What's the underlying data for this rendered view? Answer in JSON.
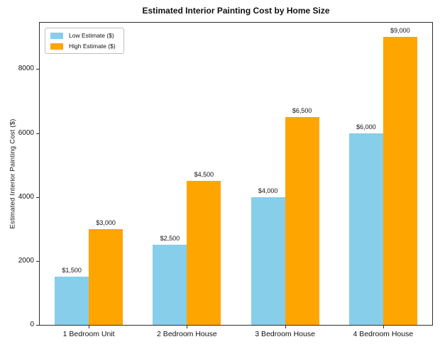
{
  "chart_data": {
    "type": "bar",
    "title": "Estimated Interior Painting Cost by Home Size",
    "xlabel": "",
    "ylabel": "Estimated Interior Painting Cost ($)",
    "categories": [
      "1 Bedroom Unit",
      "2 Bedroom House",
      "3 Bedroom House",
      "4 Bedroom House"
    ],
    "series": [
      {
        "name": "Low Estimate ($)",
        "color": "#87CEEB",
        "values": [
          1500,
          2500,
          4000,
          6000
        ],
        "labels": [
          "$1,500",
          "$2,500",
          "$4,000",
          "$6,000"
        ]
      },
      {
        "name": "High Estimate ($)",
        "color": "#FFA500",
        "values": [
          3000,
          4500,
          6500,
          9000
        ],
        "labels": [
          "$3,000",
          "$4,500",
          "$6,500",
          "$9,000"
        ]
      }
    ],
    "ylim": [
      0,
      9450
    ],
    "yticks": [
      0,
      2000,
      4000,
      6000,
      8000
    ],
    "ytick_labels": [
      "0",
      "2000",
      "4000",
      "6000",
      "8000"
    ],
    "legend_position": "upper left",
    "grid": false
  }
}
